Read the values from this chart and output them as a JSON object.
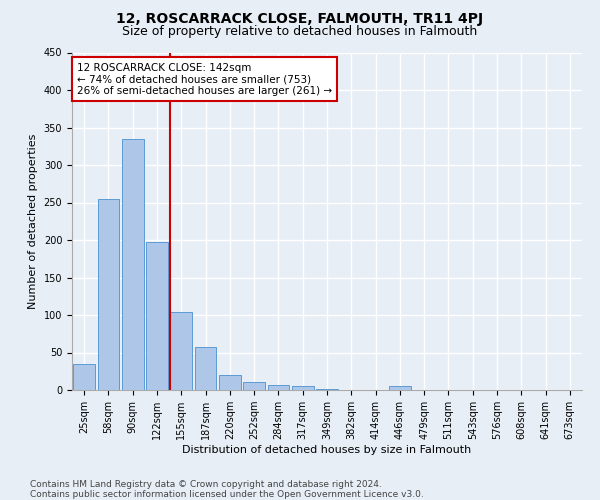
{
  "title": "12, ROSCARRACK CLOSE, FALMOUTH, TR11 4PJ",
  "subtitle": "Size of property relative to detached houses in Falmouth",
  "xlabel": "Distribution of detached houses by size in Falmouth",
  "ylabel": "Number of detached properties",
  "categories": [
    "25sqm",
    "58sqm",
    "90sqm",
    "122sqm",
    "155sqm",
    "187sqm",
    "220sqm",
    "252sqm",
    "284sqm",
    "317sqm",
    "349sqm",
    "382sqm",
    "414sqm",
    "446sqm",
    "479sqm",
    "511sqm",
    "543sqm",
    "576sqm",
    "608sqm",
    "641sqm",
    "673sqm"
  ],
  "values": [
    35,
    255,
    335,
    197,
    104,
    57,
    20,
    11,
    7,
    5,
    2,
    0,
    0,
    5,
    0,
    0,
    0,
    0,
    0,
    0,
    0
  ],
  "bar_color": "#aec6e8",
  "bar_edge_color": "#5b9bd5",
  "property_line_bin_index": 3.515,
  "annotation_text": "12 ROSCARRACK CLOSE: 142sqm\n← 74% of detached houses are smaller (753)\n26% of semi-detached houses are larger (261) →",
  "annotation_box_color": "#ffffff",
  "annotation_box_edge_color": "#cc0000",
  "vline_color": "#cc0000",
  "footnote": "Contains HM Land Registry data © Crown copyright and database right 2024.\nContains public sector information licensed under the Open Government Licence v3.0.",
  "ylim": [
    0,
    450
  ],
  "bg_color": "#e8eef6",
  "plot_bg_color": "#e8eef6",
  "grid_color": "#ffffff",
  "title_fontsize": 10,
  "subtitle_fontsize": 9,
  "tick_fontsize": 7,
  "label_fontsize": 8,
  "footnote_fontsize": 6.5
}
